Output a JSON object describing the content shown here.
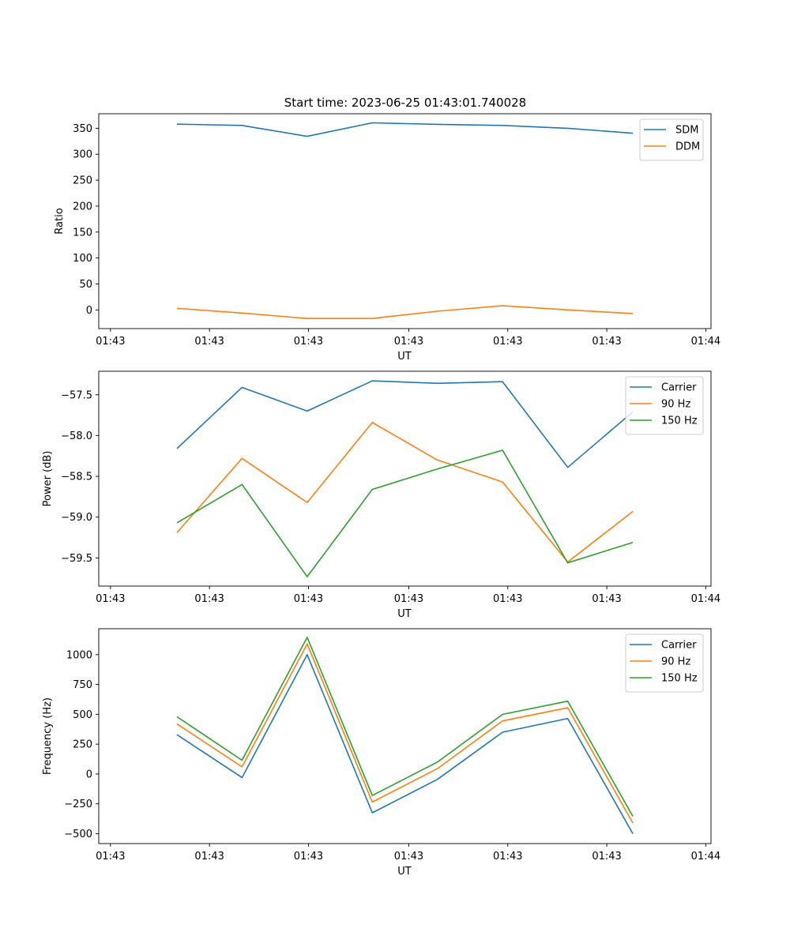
{
  "figure": {
    "title": "Start time: 2023-06-25 01:43:01.740028"
  },
  "chart_data": [
    {
      "type": "line",
      "title": "Start time: 2023-06-25 01:43:01.740028",
      "xlabel": "UT",
      "ylabel": "Ratio",
      "x": [
        0.5,
        1.0,
        1.5,
        2.0,
        2.5,
        3.0,
        3.5,
        4.0
      ],
      "xlim": [
        -0.1,
        4.6
      ],
      "xticks": [
        -0.01,
        0.75,
        1.51,
        2.28,
        3.04,
        3.8,
        4.56
      ],
      "xticklabels": [
        "01:43",
        "01:43",
        "01:43",
        "01:43",
        "01:43",
        "01:43",
        "01:44"
      ],
      "ylim": [
        -36,
        378
      ],
      "yticks": [
        0,
        50,
        100,
        150,
        200,
        250,
        300,
        350
      ],
      "yticklabels": [
        "0",
        "50",
        "100",
        "150",
        "200",
        "250",
        "300",
        "350"
      ],
      "grid": false,
      "legend": "top-right",
      "series": [
        {
          "name": "SDM",
          "color": "#1f77b4",
          "values": [
            358,
            355.5,
            334.5,
            360.5,
            357.5,
            355.5,
            350,
            340.5
          ]
        },
        {
          "name": "DDM",
          "color": "#ff7f0e",
          "values": [
            3,
            -6,
            -16.5,
            -16.5,
            -2.5,
            8,
            0,
            -7
          ]
        }
      ]
    },
    {
      "type": "line",
      "xlabel": "UT",
      "ylabel": "Power (dB)",
      "x": [
        0.5,
        1.0,
        1.5,
        2.0,
        2.5,
        3.0,
        3.5,
        4.0
      ],
      "xlim": [
        -0.1,
        4.6
      ],
      "xticks": [
        -0.01,
        0.75,
        1.51,
        2.28,
        3.04,
        3.8,
        4.56
      ],
      "xticklabels": [
        "01:43",
        "01:43",
        "01:43",
        "01:43",
        "01:43",
        "01:43",
        "01:44"
      ],
      "ylim": [
        -59.845,
        -57.212
      ],
      "yticks": [
        -59.5,
        -59.0,
        -58.5,
        -58.0,
        -57.5
      ],
      "yticklabels": [
        "−59.5",
        "−59.0",
        "−58.5",
        "−58.0",
        "−57.5"
      ],
      "grid": false,
      "legend": "top-right",
      "series": [
        {
          "name": "Carrier",
          "color": "#1f77b4",
          "values": [
            -58.16,
            -57.41,
            -57.7,
            -57.33,
            -57.36,
            -57.34,
            -58.39,
            -57.71
          ]
        },
        {
          "name": "90 Hz",
          "color": "#ff7f0e",
          "values": [
            -59.19,
            -58.28,
            -58.82,
            -57.84,
            -58.3,
            -58.57,
            -59.55,
            -58.93
          ]
        },
        {
          "name": "150 Hz",
          "color": "#2ca02c",
          "values": [
            -59.07,
            -58.6,
            -59.73,
            -58.66,
            -58.41,
            -58.18,
            -59.56,
            -59.31
          ]
        }
      ]
    },
    {
      "type": "line",
      "xlabel": "UT",
      "ylabel": "Frequency (Hz)",
      "x": [
        0.5,
        1.0,
        1.5,
        2.0,
        2.5,
        3.0,
        3.5,
        4.0
      ],
      "xlim": [
        -0.1,
        4.6
      ],
      "xticks": [
        -0.01,
        0.75,
        1.51,
        2.28,
        3.04,
        3.8,
        4.56
      ],
      "xticklabels": [
        "01:43",
        "01:43",
        "01:43",
        "01:43",
        "01:43",
        "01:43",
        "01:44"
      ],
      "ylim": [
        -583,
        1217
      ],
      "yticks": [
        -500,
        -250,
        0,
        250,
        500,
        750,
        1000
      ],
      "yticklabels": [
        "−500",
        "−250",
        "0",
        "250",
        "500",
        "750",
        "1000"
      ],
      "grid": false,
      "legend": "top-right",
      "series": [
        {
          "name": "Carrier",
          "color": "#1f77b4",
          "values": [
            330,
            -30,
            1000,
            -325,
            -45,
            350,
            465,
            -500
          ]
        },
        {
          "name": "90 Hz",
          "color": "#ff7f0e",
          "values": [
            420,
            60,
            1090,
            -235,
            45,
            445,
            555,
            -410
          ]
        },
        {
          "name": "150 Hz",
          "color": "#2ca02c",
          "values": [
            480,
            115,
            1145,
            -180,
            100,
            500,
            610,
            -355
          ]
        }
      ]
    }
  ]
}
